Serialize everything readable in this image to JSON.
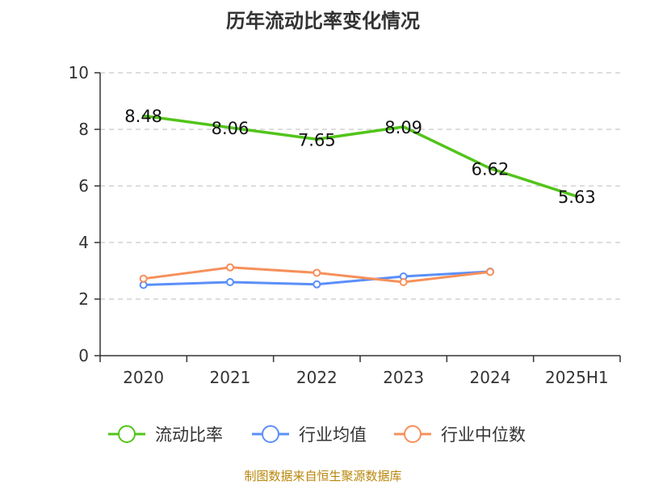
{
  "chart_data": {
    "type": "line",
    "title": "历年流动比率变化情况",
    "categories": [
      "2020",
      "2021",
      "2022",
      "2023",
      "2024",
      "2025H1"
    ],
    "ylim": [
      0,
      10
    ],
    "yticks": [
      0,
      2,
      4,
      6,
      8,
      10
    ],
    "grid": true,
    "legend_position": "bottom",
    "series": [
      {
        "name": "流动比率",
        "color": "#52c41a",
        "values": [
          8.48,
          8.06,
          7.65,
          8.09,
          6.62,
          5.63
        ],
        "labels": [
          "8.48",
          "8.06",
          "7.65",
          "8.09",
          "6.62",
          "5.63"
        ]
      },
      {
        "name": "行业均值",
        "color": "#5b8ff9",
        "values": [
          2.5,
          2.6,
          2.52,
          2.8,
          2.97,
          null
        ]
      },
      {
        "name": "行业中位数",
        "color": "#f6905b",
        "values": [
          2.72,
          3.12,
          2.93,
          2.6,
          2.96,
          null
        ]
      }
    ]
  },
  "source": "制图数据来自恒生聚源数据库"
}
